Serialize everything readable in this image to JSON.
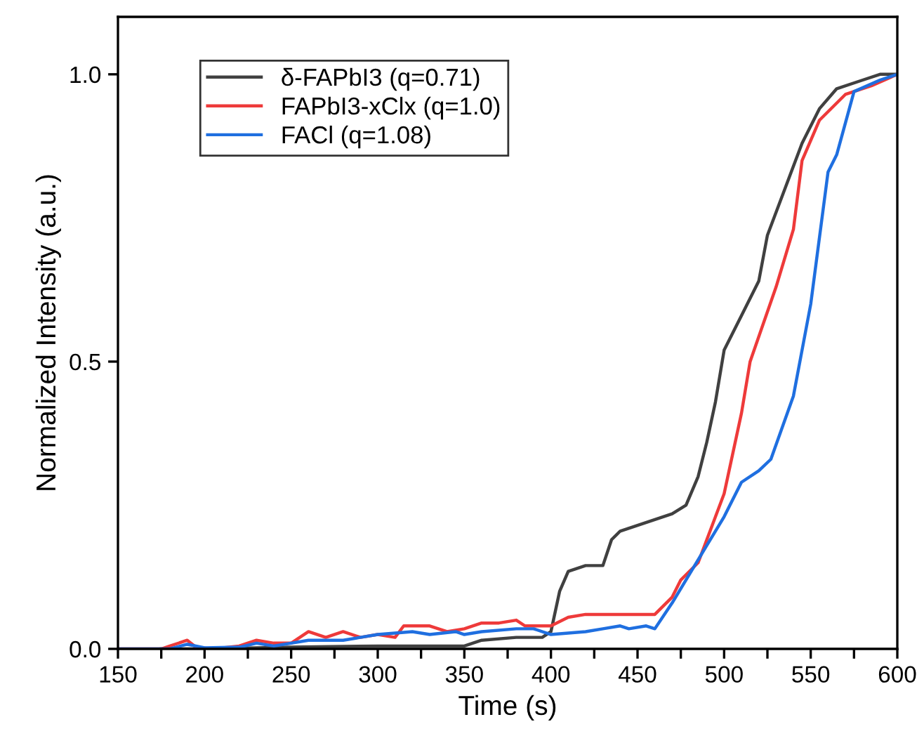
{
  "chart_data": {
    "type": "line",
    "xlabel": "Time (s)",
    "ylabel": "Normalized Intensity (a.u.)",
    "xlim": [
      150,
      600
    ],
    "ylim": [
      0,
      1.1
    ],
    "xticks": [
      150,
      {
        "value": 175,
        "label": null
      },
      200,
      {
        "value": 225,
        "label": null
      },
      250,
      {
        "value": 275,
        "label": null
      },
      300,
      {
        "value": 325,
        "label": null
      },
      350,
      {
        "value": 375,
        "label": null
      },
      400,
      {
        "value": 425,
        "label": null
      },
      450,
      {
        "value": 475,
        "label": null
      },
      500,
      {
        "value": 525,
        "label": null
      },
      550,
      {
        "value": 575,
        "label": null
      },
      600
    ],
    "yticks": [
      {
        "value": 0,
        "label": "0.0"
      },
      0.5,
      {
        "value": 1,
        "label": "1.0"
      }
    ],
    "grid": false,
    "legend": "top left",
    "line_style": "solid",
    "marker": "none",
    "series": [
      {
        "name": "δ-FAPbI3 (q=0.71)",
        "color": "#404040",
        "x": [
          175,
          200,
          250,
          300,
          350,
          360,
          380,
          395,
          400,
          405,
          410,
          420,
          430,
          435,
          440,
          450,
          470,
          478,
          485,
          490,
          495,
          500,
          510,
          520,
          525,
          535,
          545,
          555,
          565,
          580,
          590,
          600
        ],
        "values": [
          0,
          0,
          0.003,
          0.005,
          0.005,
          0.015,
          0.02,
          0.02,
          0.03,
          0.1,
          0.135,
          0.145,
          0.145,
          0.19,
          0.205,
          0.215,
          0.235,
          0.25,
          0.3,
          0.36,
          0.43,
          0.52,
          0.58,
          0.64,
          0.72,
          0.8,
          0.88,
          0.94,
          0.975,
          0.99,
          1.0,
          1.0
        ]
      },
      {
        "name": "FAPbI3-xClx (q=1.0)",
        "color": "#ee3a3a",
        "x": [
          150,
          175,
          180,
          190,
          195,
          205,
          220,
          230,
          240,
          250,
          260,
          270,
          280,
          290,
          300,
          310,
          315,
          330,
          340,
          350,
          360,
          370,
          380,
          385,
          400,
          410,
          420,
          440,
          455,
          460,
          470,
          475,
          485,
          490,
          500,
          510,
          515,
          530,
          540,
          545,
          555,
          570,
          585,
          600
        ],
        "values": [
          0,
          0,
          0.005,
          0.015,
          0.003,
          0,
          0.005,
          0.015,
          0.01,
          0.01,
          0.03,
          0.02,
          0.03,
          0.02,
          0.025,
          0.02,
          0.04,
          0.04,
          0.03,
          0.035,
          0.045,
          0.045,
          0.05,
          0.04,
          0.04,
          0.055,
          0.06,
          0.06,
          0.06,
          0.06,
          0.09,
          0.12,
          0.15,
          0.19,
          0.27,
          0.41,
          0.5,
          0.63,
          0.73,
          0.85,
          0.92,
          0.965,
          0.98,
          1.0
        ]
      },
      {
        "name": "FACl (q=1.08)",
        "color": "#1f6fe0",
        "x": [
          150,
          180,
          190,
          200,
          220,
          230,
          240,
          250,
          260,
          280,
          290,
          300,
          320,
          330,
          345,
          350,
          360,
          380,
          390,
          400,
          420,
          430,
          440,
          445,
          455,
          460,
          470,
          480,
          490,
          500,
          510,
          520,
          527,
          540,
          550,
          560,
          565,
          575,
          590,
          600
        ],
        "values": [
          0,
          0,
          0.008,
          0.002,
          0.003,
          0.01,
          0.005,
          0.01,
          0.015,
          0.015,
          0.02,
          0.025,
          0.03,
          0.025,
          0.03,
          0.025,
          0.03,
          0.035,
          0.035,
          0.025,
          0.03,
          0.035,
          0.04,
          0.035,
          0.04,
          0.035,
          0.08,
          0.13,
          0.18,
          0.23,
          0.29,
          0.31,
          0.33,
          0.44,
          0.6,
          0.83,
          0.86,
          0.97,
          0.99,
          1.0
        ]
      }
    ]
  }
}
